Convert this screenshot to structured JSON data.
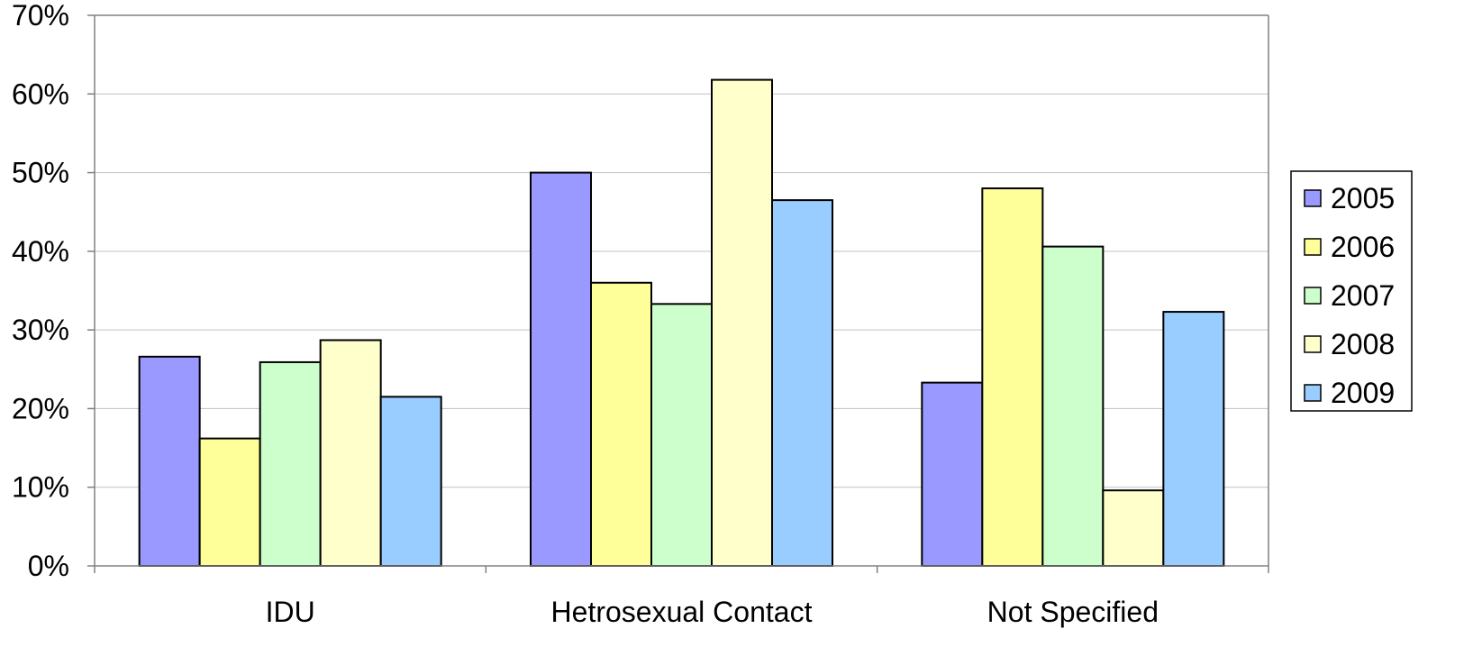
{
  "chart_data": {
    "type": "bar",
    "categories": [
      "IDU",
      "Hetrosexual Contact",
      "Not Specified"
    ],
    "series": [
      {
        "name": "2005",
        "values": [
          26.6,
          50.0,
          23.3
        ],
        "color": "#9999ff"
      },
      {
        "name": "2006",
        "values": [
          16.2,
          36.0,
          48.0
        ],
        "color": "#ffff99"
      },
      {
        "name": "2007",
        "values": [
          25.9,
          33.3,
          40.6
        ],
        "color": "#ccffcc"
      },
      {
        "name": "2008",
        "values": [
          28.7,
          61.8,
          9.6
        ],
        "color": "#ffffcc"
      },
      {
        "name": "2009",
        "values": [
          21.5,
          46.5,
          32.3
        ],
        "color": "#99ccff"
      }
    ],
    "yticks": [
      "0%",
      "10%",
      "20%",
      "30%",
      "40%",
      "50%",
      "60%",
      "70%"
    ],
    "ylim": [
      0,
      70
    ],
    "grid": true,
    "legend_position": "right"
  }
}
